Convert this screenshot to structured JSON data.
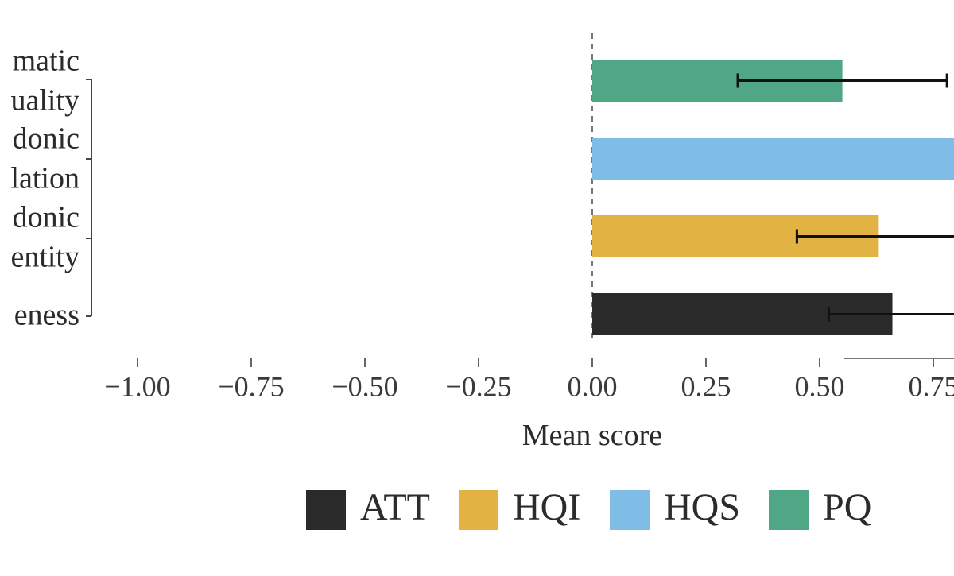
{
  "chart_data": {
    "type": "bar",
    "orientation": "horizontal",
    "xlabel": "Mean score",
    "xlim": [
      -1.0,
      0.78
    ],
    "x_ticks": [
      -1.0,
      -0.75,
      -0.5,
      -0.25,
      0.0,
      0.25,
      0.5,
      0.75
    ],
    "x_tick_labels": [
      "−1.00",
      "−0.75",
      "−0.50",
      "−0.25",
      "0.00",
      "0.25",
      "0.50",
      "0.75"
    ],
    "category_labels": [
      "matic",
      "uality",
      "donic",
      "lation",
      "donic",
      "entity",
      "eness"
    ],
    "bars": [
      {
        "series": "PQ",
        "value": 0.55,
        "error_low": 0.32,
        "error_high": 0.78
      },
      {
        "series": "HQS",
        "value": 0.8,
        "error_low": null,
        "error_high": null
      },
      {
        "series": "HQI",
        "value": 0.63,
        "error_low": 0.45,
        "error_high": 0.8
      },
      {
        "series": "ATT",
        "value": 0.66,
        "error_low": 0.52,
        "error_high": 0.8
      }
    ],
    "legend": {
      "position": "bottom",
      "entries": [
        {
          "name": "ATT",
          "color": "#2a2a2a"
        },
        {
          "name": "HQI",
          "color": "#e2b243"
        },
        {
          "name": "HQS",
          "color": "#80bde6"
        },
        {
          "name": "PQ",
          "color": "#4fa785"
        }
      ]
    },
    "zero_line": "dashed",
    "grid": false
  }
}
